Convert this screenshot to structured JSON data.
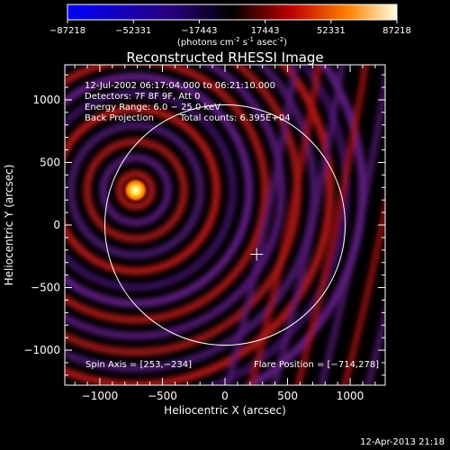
{
  "chart_data": {
    "type": "heatmap",
    "title": "Reconstructed RHESSI Image",
    "xlabel": "Heliocentric X (arcsec)",
    "ylabel": "Heliocentric Y (arcsec)",
    "xlim": [
      -1280,
      1280
    ],
    "ylim": [
      -1280,
      1280
    ],
    "xticks": [
      -1000,
      -500,
      0,
      500,
      1000
    ],
    "yticks": [
      -1000,
      -500,
      0,
      500,
      1000
    ],
    "xtick_labels": [
      "−1000",
      "−500",
      "0",
      "500",
      "1000"
    ],
    "ytick_labels": [
      "−1000",
      "−500",
      "0",
      "500",
      "1000"
    ],
    "colorbar": {
      "min": -87218,
      "max": 87218,
      "tick_values": [
        -87218,
        -52331,
        -17443,
        17443,
        52331,
        87218
      ],
      "tick_labels": [
        "−87218",
        "−52331",
        "−17443",
        "17443",
        "52331",
        "87218"
      ],
      "unit_main": "(photons cm",
      "unit_sup1": "-2",
      "unit_mid": " s",
      "unit_sup2": "-1",
      "unit_mid2": " asec",
      "unit_sup3": "-2",
      "unit_close": ")"
    },
    "annotations": {
      "time_range": "12-Jul-2002 06:17:04.000 to 06:21:10.000",
      "detectors": "Detectors: 7F 8F 9F, Att 0",
      "energy": "Energy Range: 6.0 − 25.0 keV",
      "method": "Back Projection",
      "total_counts": "Total counts: 6.395E+04",
      "spin_axis": "Spin Axis = [253,−234]",
      "flare_position": "Flare Position = [−714,278]"
    },
    "source": {
      "x": -714,
      "y": 278
    },
    "spin_axis": {
      "x": 253,
      "y": -234
    },
    "solar_limb_radius": 960,
    "footer": "12-Apr-2013 21:18"
  }
}
